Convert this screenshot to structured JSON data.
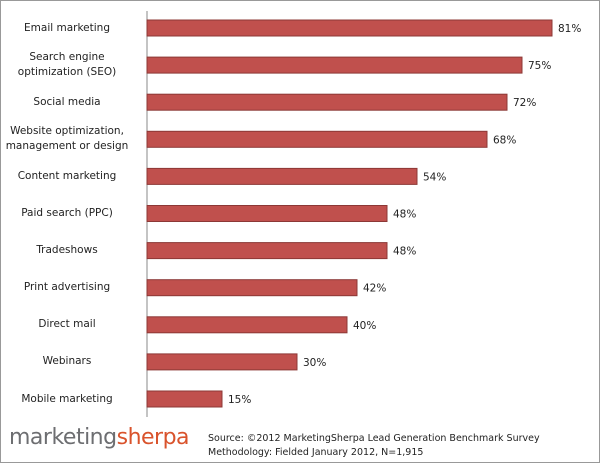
{
  "chart_data": {
    "type": "bar",
    "orientation": "horizontal",
    "categories": [
      "Email marketing",
      "Search engine\noptimization  (SEO)",
      "Social media",
      "Website optimization,\nmanagement or design",
      "Content marketing",
      "Paid search (PPC)",
      "Tradeshows",
      "Print advertising",
      "Direct mail",
      "Webinars",
      "Mobile marketing"
    ],
    "values": [
      81,
      75,
      72,
      68,
      54,
      48,
      48,
      42,
      40,
      30,
      15
    ],
    "value_labels": [
      "81%",
      "75%",
      "72%",
      "68%",
      "54%",
      "48%",
      "48%",
      "42%",
      "40%",
      "30%",
      "15%"
    ],
    "color": "#c0504d",
    "xlim": [
      0,
      90
    ]
  },
  "footer": {
    "logo": {
      "part1": "marketing",
      "part2": "sherpa"
    },
    "source": "Source: ©2012 MarketingSherpa Lead Generation Benchmark Survey",
    "methodology": "Methodology: Fielded January 2012, N=1,915"
  }
}
